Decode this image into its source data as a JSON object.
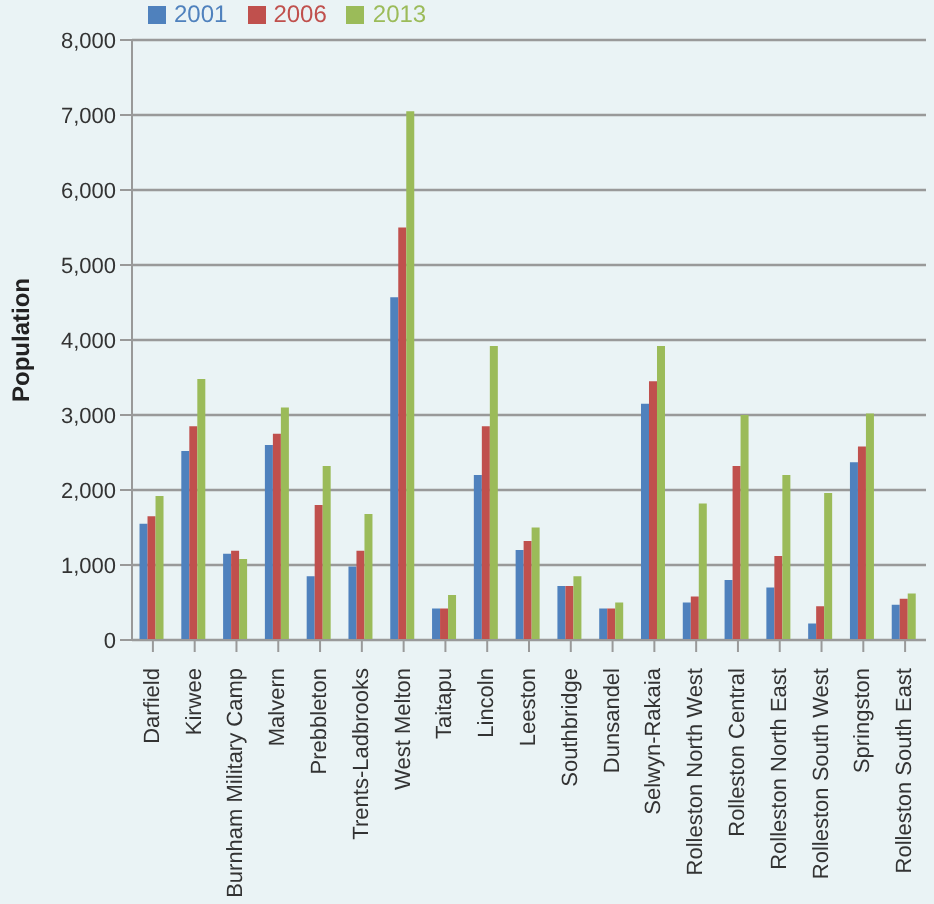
{
  "chart_data": {
    "type": "bar",
    "ylabel": "Population",
    "categories": [
      "Darfield",
      "Kirwee",
      "Burnham Military Camp",
      "Malvern",
      "Prebbleton",
      "Trents-Ladbrooks",
      "West Melton",
      "Taitapu",
      "Lincoln",
      "Leeston",
      "Southbridge",
      "Dunsandel",
      "Selwyn-Rakaia",
      "Rolleston North West",
      "Rolleston Central",
      "Rolleston North East",
      "Rolleston South West",
      "Springston",
      "Rolleston South East"
    ],
    "series": [
      {
        "name": "2001",
        "color": "#4f81bd",
        "values": [
          1550,
          2520,
          1150,
          2600,
          850,
          980,
          4570,
          420,
          2200,
          1200,
          720,
          420,
          3150,
          500,
          800,
          700,
          220,
          2370,
          470
        ]
      },
      {
        "name": "2006",
        "color": "#c0504d",
        "values": [
          1650,
          2850,
          1190,
          2750,
          1800,
          1190,
          5500,
          420,
          2850,
          1320,
          720,
          420,
          3450,
          580,
          2320,
          1120,
          450,
          2580,
          550
        ]
      },
      {
        "name": "2013",
        "color": "#9bbb59",
        "values": [
          1920,
          3480,
          1080,
          3100,
          2320,
          1680,
          7050,
          600,
          3920,
          1500,
          850,
          500,
          3920,
          1820,
          3000,
          2200,
          1960,
          3020,
          620
        ]
      }
    ],
    "ylim": [
      0,
      8000
    ],
    "yticks": [
      {
        "value": 0,
        "label": "0"
      },
      {
        "value": 1000,
        "label": "1,000"
      },
      {
        "value": 2000,
        "label": "2,000"
      },
      {
        "value": 3000,
        "label": "3,000"
      },
      {
        "value": 4000,
        "label": "4,000"
      },
      {
        "value": 5000,
        "label": "5,000"
      },
      {
        "value": 6000,
        "label": "6,000"
      },
      {
        "value": 7000,
        "label": "7,000"
      },
      {
        "value": 8000,
        "label": "8,000"
      }
    ],
    "grid": "y",
    "legend": "top left"
  }
}
